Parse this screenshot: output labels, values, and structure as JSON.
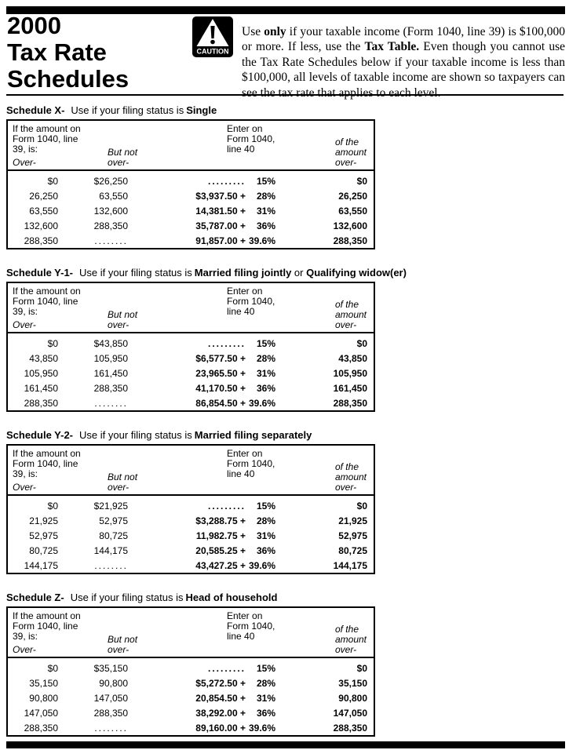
{
  "header": {
    "title_lines": [
      "2000",
      "Tax Rate",
      "Schedules"
    ],
    "caution_label": "CAUTION",
    "intro_segments": [
      {
        "text": "Use ",
        "bold": false
      },
      {
        "text": "only",
        "bold": true
      },
      {
        "text": " if your taxable income (Form 1040, line 39) is $100,000 or more. If less, use the ",
        "bold": false
      },
      {
        "text": "Tax Table.",
        "bold": true
      },
      {
        "text": " Even though you cannot use the Tax Rate Schedules below if your taxable income is less than $100,000, all levels of taxable income are shown so taxpayers can see the tax rate that applies to each level.",
        "bold": false
      }
    ]
  },
  "table_header": {
    "col1_lines": [
      "If the amount on",
      "Form 1040, line",
      "39, is:"
    ],
    "col1_over": "Over-",
    "col2_lines": [
      "But not",
      "over-"
    ],
    "col3_lines": [
      "Enter on",
      "Form 1040,",
      "line 40"
    ],
    "col4_lines": [
      "of the",
      "amount",
      "over-"
    ]
  },
  "schedules": [
    {
      "name": "Schedule X-",
      "use_text": "Use if your filing status is",
      "status_segments": [
        {
          "text": "Single",
          "bold": true
        }
      ],
      "rows": [
        {
          "over": "$0",
          "but_not_over": "$26,250",
          "tax": ".........",
          "rate": "15%",
          "of_amount": "$0"
        },
        {
          "over": "26,250",
          "but_not_over": "63,550",
          "tax": "$3,937.50 +",
          "rate": "28%",
          "of_amount": "26,250"
        },
        {
          "over": "63,550",
          "but_not_over": "132,600",
          "tax": "14,381.50 +",
          "rate": "31%",
          "of_amount": "63,550"
        },
        {
          "over": "132,600",
          "but_not_over": "288,350",
          "tax": "35,787.00 +",
          "rate": "36%",
          "of_amount": "132,600"
        },
        {
          "over": "288,350",
          "but_not_over": "........",
          "tax": "91,857.00 +",
          "rate": "39.6%",
          "of_amount": "288,350"
        }
      ]
    },
    {
      "name": "Schedule Y-1-",
      "use_text": "Use if your filing status is",
      "status_segments": [
        {
          "text": "Married filing jointly",
          "bold": true
        },
        {
          "text": " or ",
          "bold": false
        },
        {
          "text": "Qualifying widow(er)",
          "bold": true
        }
      ],
      "rows": [
        {
          "over": "$0",
          "but_not_over": "$43,850",
          "tax": ".........",
          "rate": "15%",
          "of_amount": "$0"
        },
        {
          "over": "43,850",
          "but_not_over": "105,950",
          "tax": "$6,577.50 +",
          "rate": "28%",
          "of_amount": "43,850"
        },
        {
          "over": "105,950",
          "but_not_over": "161,450",
          "tax": "23,965.50 +",
          "rate": "31%",
          "of_amount": "105,950"
        },
        {
          "over": "161,450",
          "but_not_over": "288,350",
          "tax": "41,170.50 +",
          "rate": "36%",
          "of_amount": "161,450"
        },
        {
          "over": "288,350",
          "but_not_over": "........",
          "tax": "86,854.50 +",
          "rate": "39.6%",
          "of_amount": "288,350"
        }
      ]
    },
    {
      "name": "Schedule Y-2-",
      "use_text": "Use if your filing status is",
      "status_segments": [
        {
          "text": "Married filing separately",
          "bold": true
        }
      ],
      "rows": [
        {
          "over": "$0",
          "but_not_over": "$21,925",
          "tax": ".........",
          "rate": "15%",
          "of_amount": "$0"
        },
        {
          "over": "21,925",
          "but_not_over": "52,975",
          "tax": "$3,288.75 +",
          "rate": "28%",
          "of_amount": "21,925"
        },
        {
          "over": "52,975",
          "but_not_over": "80,725",
          "tax": "11,982.75 +",
          "rate": "31%",
          "of_amount": "52,975"
        },
        {
          "over": "80,725",
          "but_not_over": "144,175",
          "tax": "20,585.25 +",
          "rate": "36%",
          "of_amount": "80,725"
        },
        {
          "over": "144,175",
          "but_not_over": "........",
          "tax": "43,427.25 +",
          "rate": "39.6%",
          "of_amount": "144,175"
        }
      ]
    },
    {
      "name": "Schedule Z-",
      "use_text": "Use if your filing status is",
      "status_segments": [
        {
          "text": "Head of household",
          "bold": true
        }
      ],
      "rows": [
        {
          "over": "$0",
          "but_not_over": "$35,150",
          "tax": ".........",
          "rate": "15%",
          "of_amount": "$0"
        },
        {
          "over": "35,150",
          "but_not_over": "90,800",
          "tax": "$5,272.50 +",
          "rate": "28%",
          "of_amount": "35,150"
        },
        {
          "over": "90,800",
          "but_not_over": "147,050",
          "tax": "20,854.50 +",
          "rate": "31%",
          "of_amount": "90,800"
        },
        {
          "over": "147,050",
          "but_not_over": "288,350",
          "tax": "38,292.00 +",
          "rate": "36%",
          "of_amount": "147,050"
        },
        {
          "over": "288,350",
          "but_not_over": "........",
          "tax": "89,160.00 +",
          "rate": "39.6%",
          "of_amount": "288,350"
        }
      ]
    }
  ],
  "colors": {
    "ink": "#000000",
    "paper": "#ffffff"
  }
}
